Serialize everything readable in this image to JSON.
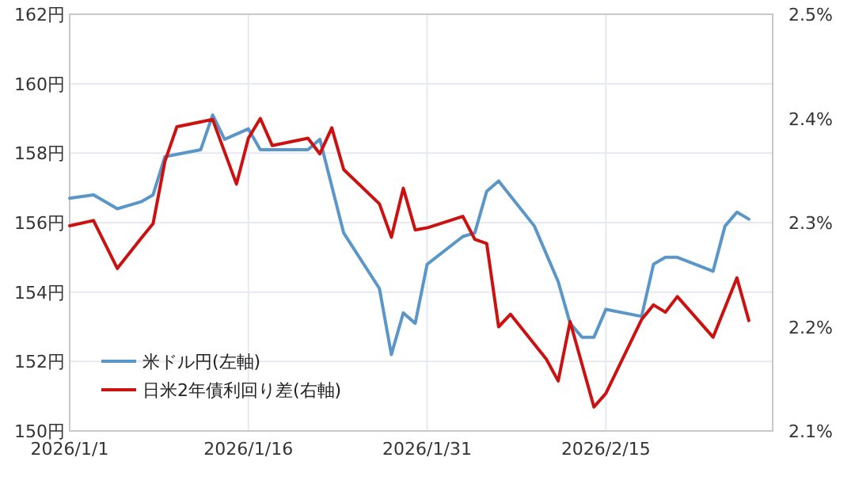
{
  "chart_data": {
    "type": "line",
    "legend": "bottom left",
    "grid": true,
    "line_style": "solid",
    "xlim": [
      "2026-01-01",
      "2026-03-01"
    ],
    "xticks": [
      {
        "value": "2026-01-01",
        "label": "2026/1/1"
      },
      {
        "value": "2026-01-16",
        "label": "2026/1/16"
      },
      {
        "value": "2026-01-31",
        "label": "2026/1/31"
      },
      {
        "value": "2026-02-15",
        "label": "2026/2/15"
      }
    ],
    "ylim": [
      150,
      162
    ],
    "yticks": [
      {
        "value": 150,
        "label": "150円"
      },
      {
        "value": 152,
        "label": "152円"
      },
      {
        "value": 154,
        "label": "154円"
      },
      {
        "value": 156,
        "label": "156円"
      },
      {
        "value": 158,
        "label": "158円"
      },
      {
        "value": 160,
        "label": "160円"
      },
      {
        "value": 162,
        "label": "162円"
      }
    ],
    "y2lim": [
      2.1,
      2.5
    ],
    "y2ticks": [
      {
        "value": 2.1,
        "label": "2.1%"
      },
      {
        "value": 2.2,
        "label": "2.2%"
      },
      {
        "value": 2.3,
        "label": "2.3%"
      },
      {
        "value": 2.4,
        "label": "2.4%"
      },
      {
        "value": 2.5,
        "label": "2.5%"
      }
    ],
    "series": [
      {
        "name": "米ドル円(左軸)",
        "color": "#5a96c8",
        "x": [
          "2026-01-01",
          "2026-01-03",
          "2026-01-05",
          "2026-01-07",
          "2026-01-08",
          "2026-01-09",
          "2026-01-12",
          "2026-01-13",
          "2026-01-14",
          "2026-01-16",
          "2026-01-17",
          "2026-01-21",
          "2026-01-22",
          "2026-01-24",
          "2026-01-27",
          "2026-01-28",
          "2026-01-29",
          "2026-01-30",
          "2026-01-31",
          "2026-02-03",
          "2026-02-04",
          "2026-02-05",
          "2026-02-06",
          "2026-02-09",
          "2026-02-11",
          "2026-02-12",
          "2026-02-13",
          "2026-02-14",
          "2026-02-15",
          "2026-02-18",
          "2026-02-19",
          "2026-02-20",
          "2026-02-21",
          "2026-02-24",
          "2026-02-25",
          "2026-02-26",
          "2026-02-27"
        ],
        "values": [
          156.7,
          156.8,
          156.4,
          156.6,
          156.8,
          157.9,
          158.1,
          159.1,
          158.4,
          158.7,
          158.1,
          158.1,
          158.4,
          155.7,
          154.1,
          152.2,
          153.4,
          153.1,
          154.8,
          155.6,
          155.7,
          156.9,
          157.2,
          155.9,
          154.3,
          153.1,
          152.7,
          152.7,
          153.5,
          153.3,
          154.8,
          155.0,
          155.0,
          154.6,
          155.9,
          156.3,
          156.1
        ]
      },
      {
        "name": "日米2年債利回り差(右軸)",
        "color": "#cc1111",
        "axis": "y2",
        "x": [
          "2026-01-01",
          "2026-01-03",
          "2026-01-05",
          "2026-01-07",
          "2026-01-08",
          "2026-01-09",
          "2026-01-10",
          "2026-01-13",
          "2026-01-15",
          "2026-01-16",
          "2026-01-17",
          "2026-01-18",
          "2026-01-21",
          "2026-01-22",
          "2026-01-23",
          "2026-01-24",
          "2026-01-27",
          "2026-01-28",
          "2026-01-29",
          "2026-01-30",
          "2026-01-31",
          "2026-02-03",
          "2026-02-04",
          "2026-02-05",
          "2026-02-06",
          "2026-02-07",
          "2026-02-10",
          "2026-02-11",
          "2026-02-12",
          "2026-02-14",
          "2026-02-15",
          "2026-02-18",
          "2026-02-19",
          "2026-02-20",
          "2026-02-21",
          "2026-02-24",
          "2026-02-26",
          "2026-02-27"
        ],
        "values": [
          2.297,
          2.302,
          2.256,
          2.285,
          2.299,
          2.359,
          2.392,
          2.399,
          2.337,
          2.381,
          2.4,
          2.374,
          2.381,
          2.366,
          2.391,
          2.351,
          2.318,
          2.286,
          2.333,
          2.293,
          2.295,
          2.306,
          2.284,
          2.28,
          2.2,
          2.212,
          2.169,
          2.148,
          2.205,
          2.123,
          2.136,
          2.207,
          2.221,
          2.214,
          2.229,
          2.19,
          2.247,
          2.206
        ]
      }
    ]
  }
}
